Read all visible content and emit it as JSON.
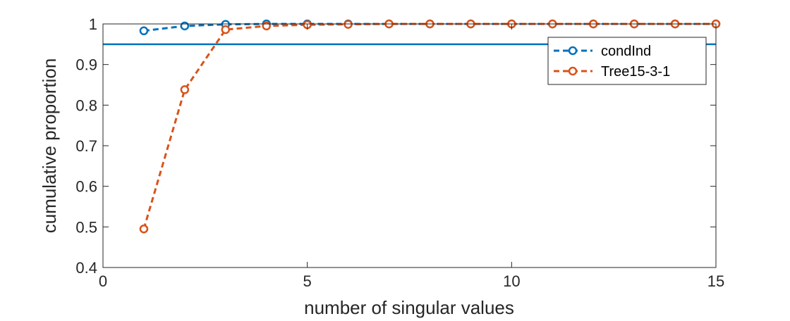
{
  "chart_data": {
    "type": "line",
    "xlabel": "number of singular values",
    "ylabel": "cumulative proportion",
    "xlim": [
      0,
      15
    ],
    "ylim": [
      0.4,
      1.0
    ],
    "xticks": [
      "0",
      "5",
      "10",
      "15"
    ],
    "yticks": [
      "0.4",
      "0.5",
      "0.6",
      "0.7",
      "0.8",
      "0.9",
      "1"
    ],
    "grid": false,
    "legend_position": "top-right",
    "reference_line": {
      "y": 0.95,
      "color": "#0072BD"
    },
    "x": [
      1,
      2,
      3,
      4,
      5,
      6,
      7,
      8,
      9,
      10,
      11,
      12,
      13,
      14,
      15
    ],
    "series": [
      {
        "name": "condInd",
        "color": "#0072BD",
        "values": [
          0.983,
          0.995,
          0.999,
          1.0,
          1.0,
          1.0,
          1.0,
          1.0,
          1.0,
          1.0,
          1.0,
          1.0,
          1.0,
          1.0,
          1.0
        ]
      },
      {
        "name": "Tree15-3-1",
        "color": "#D95319",
        "values": [
          0.495,
          0.838,
          0.986,
          0.995,
          0.998,
          0.999,
          1.0,
          1.0,
          1.0,
          1.0,
          1.0,
          1.0,
          1.0,
          1.0,
          1.0
        ]
      }
    ]
  }
}
